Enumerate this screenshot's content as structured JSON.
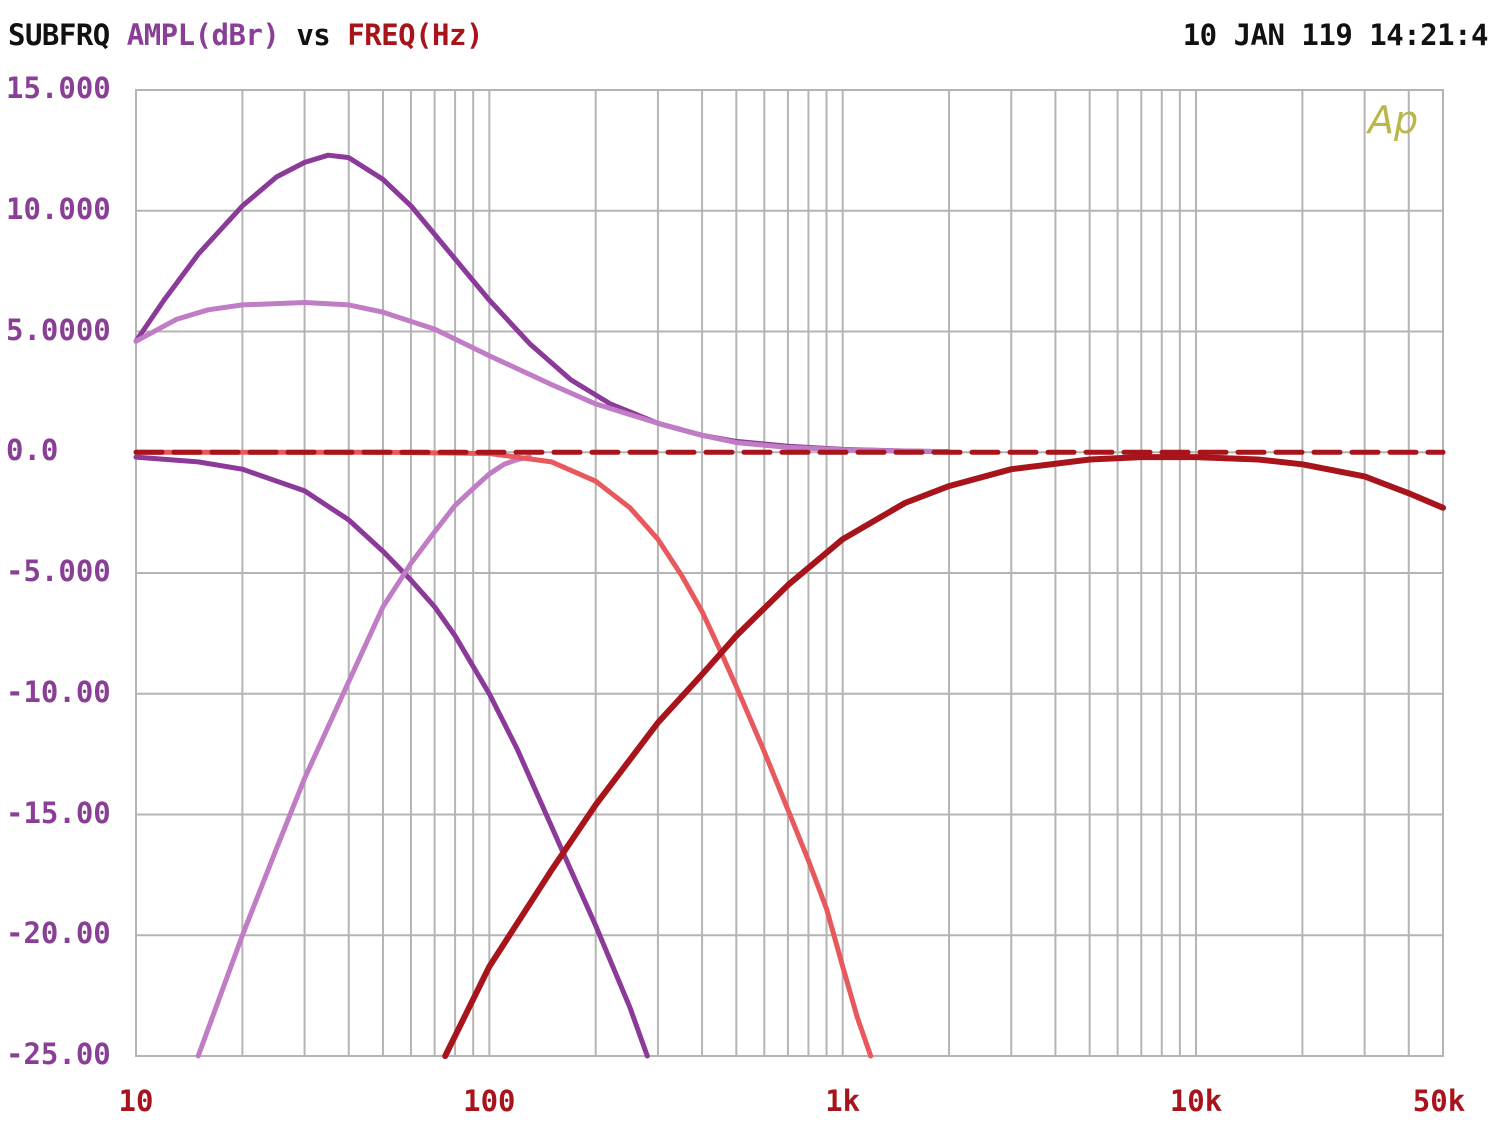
{
  "header": {
    "measurement": "SUBFRQ",
    "y_quantity": "AMPL(dBr)",
    "vs": "vs",
    "x_quantity": "FREQ(Hz)",
    "timestamp": "10 JAN 119 14:21:4"
  },
  "logo_text": "Ap",
  "colors": {
    "background": "#ffffff",
    "grid": "#b4b4b4",
    "y_axis_text": "#8a3f96",
    "x_axis_text": "#a8141b",
    "header_text": "#111111",
    "logo": "#b8b84a"
  },
  "chart_data": {
    "type": "line",
    "title": "",
    "xlabel": "FREQ(Hz)",
    "ylabel": "AMPL(dBr)",
    "x_scale": "log",
    "xlim": [
      10,
      50000
    ],
    "ylim": [
      -25,
      15
    ],
    "grid": true,
    "y_ticks": [
      {
        "value": 15,
        "label": "15.000"
      },
      {
        "value": 10,
        "label": "10.000"
      },
      {
        "value": 5,
        "label": "5.0000"
      },
      {
        "value": 0,
        "label": "0.0"
      },
      {
        "value": -5,
        "label": "-5.000"
      },
      {
        "value": -10,
        "label": "-10.00"
      },
      {
        "value": -15,
        "label": "-15.00"
      },
      {
        "value": -20,
        "label": "-20.00"
      },
      {
        "value": -25,
        "label": "-25.00"
      }
    ],
    "x_ticks": [
      {
        "value": 10,
        "label": "10"
      },
      {
        "value": 100,
        "label": "100"
      },
      {
        "value": 1000,
        "label": "1k"
      },
      {
        "value": 10000,
        "label": "10k"
      },
      {
        "value": 50000,
        "label": "50k"
      }
    ],
    "series": [
      {
        "color": "#8b3a99",
        "width": 5,
        "points": [
          [
            10,
            4.6
          ],
          [
            12,
            6.3
          ],
          [
            15,
            8.2
          ],
          [
            20,
            10.2
          ],
          [
            25,
            11.4
          ],
          [
            30,
            12.0
          ],
          [
            35,
            12.3
          ],
          [
            40,
            12.2
          ],
          [
            50,
            11.3
          ],
          [
            60,
            10.2
          ],
          [
            80,
            8.0
          ],
          [
            100,
            6.3
          ],
          [
            130,
            4.5
          ],
          [
            170,
            3.0
          ],
          [
            220,
            2.0
          ],
          [
            300,
            1.2
          ],
          [
            400,
            0.7
          ],
          [
            500,
            0.45
          ],
          [
            700,
            0.25
          ],
          [
            1000,
            0.12
          ],
          [
            1500,
            0.05
          ],
          [
            2000,
            0.02
          ]
        ]
      },
      {
        "color": "#c07cc4",
        "width": 5,
        "points": [
          [
            10,
            4.6
          ],
          [
            13,
            5.5
          ],
          [
            16,
            5.9
          ],
          [
            20,
            6.1
          ],
          [
            30,
            6.2
          ],
          [
            40,
            6.1
          ],
          [
            50,
            5.8
          ],
          [
            70,
            5.1
          ],
          [
            100,
            4.0
          ],
          [
            150,
            2.8
          ],
          [
            200,
            2.0
          ],
          [
            300,
            1.2
          ],
          [
            400,
            0.7
          ],
          [
            500,
            0.4
          ],
          [
            700,
            0.2
          ],
          [
            1000,
            0.1
          ],
          [
            1500,
            0.05
          ],
          [
            2000,
            0.02
          ]
        ]
      },
      {
        "color": "#8b3a99",
        "width": 5,
        "points": [
          [
            10,
            -0.2
          ],
          [
            15,
            -0.4
          ],
          [
            20,
            -0.7
          ],
          [
            30,
            -1.6
          ],
          [
            40,
            -2.8
          ],
          [
            50,
            -4.1
          ],
          [
            60,
            -5.3
          ],
          [
            70,
            -6.4
          ],
          [
            80,
            -7.6
          ],
          [
            100,
            -10.0
          ],
          [
            120,
            -12.3
          ],
          [
            150,
            -15.5
          ],
          [
            170,
            -17.3
          ],
          [
            200,
            -19.6
          ],
          [
            250,
            -23.0
          ],
          [
            280,
            -25.0
          ]
        ]
      },
      {
        "color": "#c07cc4",
        "width": 5,
        "points": [
          [
            15,
            -25.0
          ],
          [
            20,
            -20.0
          ],
          [
            25,
            -16.4
          ],
          [
            30,
            -13.5
          ],
          [
            40,
            -9.5
          ],
          [
            50,
            -6.4
          ],
          [
            60,
            -4.6
          ],
          [
            70,
            -3.3
          ],
          [
            80,
            -2.2
          ],
          [
            90,
            -1.5
          ],
          [
            100,
            -0.9
          ],
          [
            110,
            -0.5
          ],
          [
            120,
            -0.3
          ],
          [
            130,
            -0.2
          ]
        ]
      },
      {
        "color": "#e8595e",
        "width": 5,
        "points": [
          [
            10,
            0
          ],
          [
            50,
            0
          ],
          [
            100,
            -0.05
          ],
          [
            150,
            -0.4
          ],
          [
            200,
            -1.2
          ],
          [
            250,
            -2.3
          ],
          [
            300,
            -3.6
          ],
          [
            350,
            -5.1
          ],
          [
            400,
            -6.6
          ],
          [
            450,
            -8.2
          ],
          [
            500,
            -9.7
          ],
          [
            600,
            -12.4
          ],
          [
            700,
            -14.8
          ],
          [
            800,
            -16.9
          ],
          [
            900,
            -18.9
          ],
          [
            1000,
            -21.3
          ],
          [
            1100,
            -23.4
          ],
          [
            1200,
            -25.0
          ]
        ]
      },
      {
        "color": "#a8141b",
        "width": 6,
        "points": [
          [
            75,
            -25.0
          ],
          [
            100,
            -21.3
          ],
          [
            150,
            -17.3
          ],
          [
            200,
            -14.6
          ],
          [
            300,
            -11.2
          ],
          [
            400,
            -9.2
          ],
          [
            500,
            -7.6
          ],
          [
            700,
            -5.5
          ],
          [
            1000,
            -3.6
          ],
          [
            1500,
            -2.1
          ],
          [
            2000,
            -1.4
          ],
          [
            3000,
            -0.7
          ],
          [
            5000,
            -0.3
          ],
          [
            7000,
            -0.2
          ],
          [
            10000,
            -0.2
          ],
          [
            15000,
            -0.3
          ],
          [
            20000,
            -0.5
          ],
          [
            30000,
            -1.0
          ],
          [
            40000,
            -1.7
          ],
          [
            50000,
            -2.3
          ]
        ]
      },
      {
        "color": "#a8141b",
        "width": 5,
        "dashed": true,
        "points": [
          [
            10,
            0
          ],
          [
            50000,
            0
          ]
        ]
      }
    ]
  }
}
